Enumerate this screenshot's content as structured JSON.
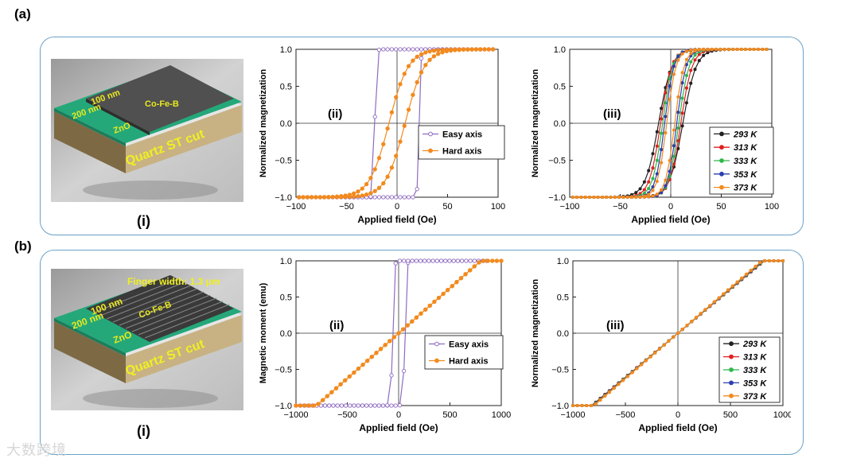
{
  "labels": {
    "panel_a": "(a)",
    "panel_b": "(b)",
    "ill_a": "(i)",
    "ill_b": "(i)",
    "ill_a_texts": {
      "thickness_cofeb": "100 nm",
      "cofeb": "Co-Fe-B",
      "thickness_zno": "200 nm",
      "zno": "ZnO",
      "substrate": "Quartz ST cut"
    },
    "ill_b_texts": {
      "finger": "Finger width: 1.3 μm",
      "thickness_cofeb": "100 nm",
      "cofeb": "Co-Fe-B",
      "thickness_zno": "200 nm",
      "zno": "ZnO",
      "substrate": "Quartz ST cut"
    },
    "watermark": "大数跨境"
  },
  "colors": {
    "frame": "#6aa1c9",
    "easy": "#8e6bbf",
    "hard": "#f28a1e",
    "t293": "#222222",
    "t313": "#e02020",
    "t333": "#2fb84a",
    "t353": "#2a3fb0",
    "t373": "#f28a1e"
  },
  "chart_data": [
    {
      "id": "a-ii",
      "type": "line",
      "tag": "(ii)",
      "xlabel": "Applied field (Oe)",
      "ylabel": "Normalized magnetization",
      "xlim": [
        -100,
        100
      ],
      "ylim": [
        -1.0,
        1.0
      ],
      "xticks": [
        -100,
        -50,
        0,
        50,
        100
      ],
      "yticks": [
        -1.0,
        -0.5,
        0.0,
        0.5,
        1.0
      ],
      "ytick_labels": [
        "-1.0",
        "-0.5",
        "0.0",
        "0.5",
        "1.0"
      ],
      "legend": "center-right",
      "series": [
        {
          "name": "Easy axis",
          "color": "#8e6bbf",
          "marker": "open",
          "model": "square",
          "xmin": -97,
          "xmax": 95,
          "hc": 22,
          "width": 1.5
        },
        {
          "name": "Hard axis",
          "color": "#f28a1e",
          "marker": "filled",
          "model": "tanh_loop",
          "xmin": -97,
          "xmax": 95,
          "hc": 8,
          "w": 19
        }
      ]
    },
    {
      "id": "a-iii",
      "type": "line",
      "tag": "(iii)",
      "xlabel": "Applied field (Oe)",
      "ylabel": "Normalized magnetization",
      "xlim": [
        -100,
        100
      ],
      "ylim": [
        -1.0,
        1.0
      ],
      "xticks": [
        -100,
        -50,
        0,
        50,
        100
      ],
      "yticks": [
        -1.0,
        -0.5,
        0.0,
        0.5,
        1.0
      ],
      "ytick_labels": [
        "-1.0",
        "-0.5",
        "0.0",
        "0.5",
        "1.0"
      ],
      "legend": "bottom-right",
      "series": [
        {
          "name": "293 K",
          "color": "#222222",
          "model": "tanh_loop",
          "xmin": -97,
          "xmax": 95,
          "hc": 12,
          "w": 13
        },
        {
          "name": "313 K",
          "color": "#e02020",
          "model": "tanh_loop",
          "xmin": -97,
          "xmax": 95,
          "hc": 10,
          "w": 11
        },
        {
          "name": "333 K",
          "color": "#2fb84a",
          "model": "tanh_loop",
          "xmin": -97,
          "xmax": 95,
          "hc": 8,
          "w": 10
        },
        {
          "name": "353 K",
          "color": "#2a3fb0",
          "model": "tanh_loop",
          "xmin": -97,
          "xmax": 95,
          "hc": 6,
          "w": 9
        },
        {
          "name": "373 K",
          "color": "#f28a1e",
          "model": "tanh_loop",
          "xmin": -97,
          "xmax": 95,
          "hc": 4,
          "w": 9
        }
      ]
    },
    {
      "id": "b-ii",
      "type": "line",
      "tag": "(ii)",
      "xlabel": "Applied field (Oe)",
      "ylabel": "Magnetic moment (emu)",
      "xlim": [
        -1000,
        1000
      ],
      "ylim": [
        -1.0,
        1.0
      ],
      "xticks": [
        -1000,
        -500,
        0,
        500,
        1000
      ],
      "yticks": [
        -1.0,
        -0.5,
        0.0,
        0.5,
        1.0
      ],
      "ytick_labels": [
        "-1.0",
        "-0.5",
        "0.0",
        "0.5",
        "1.0"
      ],
      "legend": "center-right",
      "series": [
        {
          "name": "Easy axis",
          "color": "#8e6bbf",
          "marker": "open",
          "model": "square",
          "xmin": -1000,
          "xmax": 860,
          "hc": 60,
          "width": 15
        },
        {
          "name": "Hard axis",
          "color": "#f28a1e",
          "marker": "filled",
          "model": "linear_sat",
          "xmin": -1000,
          "xmax": 1000,
          "hs": 800
        }
      ]
    },
    {
      "id": "b-iii",
      "type": "line",
      "tag": "(iii)",
      "xlabel": "Applied field (Oe)",
      "ylabel": "Normalized magnetization",
      "xlim": [
        -1000,
        1000
      ],
      "ylim": [
        -1.0,
        1.0
      ],
      "xticks": [
        -1000,
        -500,
        0,
        500,
        1000
      ],
      "yticks": [
        -1.0,
        -0.5,
        0.0,
        0.5,
        1.0
      ],
      "ytick_labels": [
        "-1.0",
        "-0.5",
        "0.0",
        "0.5",
        "1.0"
      ],
      "legend": "bottom-right",
      "series": [
        {
          "name": "293 K",
          "color": "#222222",
          "model": "linear_sat",
          "xmin": -1000,
          "xmax": 1000,
          "hs": 820
        },
        {
          "name": "313 K",
          "color": "#e02020",
          "model": "linear_sat",
          "xmin": -1000,
          "xmax": 1000,
          "hs": 815
        },
        {
          "name": "333 K",
          "color": "#2fb84a",
          "model": "linear_sat",
          "xmin": -1000,
          "xmax": 1000,
          "hs": 810
        },
        {
          "name": "353 K",
          "color": "#2a3fb0",
          "model": "linear_sat",
          "xmin": -1000,
          "xmax": 1000,
          "hs": 805
        },
        {
          "name": "373 K",
          "color": "#f28a1e",
          "model": "linear_sat",
          "xmin": -1000,
          "xmax": 1000,
          "hs": 800
        }
      ]
    }
  ]
}
